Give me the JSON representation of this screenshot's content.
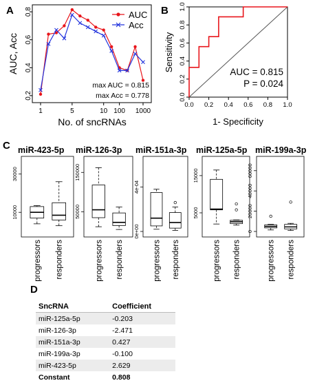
{
  "panels": {
    "a": "A",
    "b": "B",
    "c": "C",
    "d": "D"
  },
  "chart_data": [
    {
      "type": "line",
      "panel": "A",
      "xlabel": "No. of sncRNAs",
      "ylabel": "AUC, Acc",
      "x_tick_labels": [
        "1",
        "5",
        "10",
        "100",
        "1000"
      ],
      "y_tick_labels": [
        "0.2",
        "0.4",
        "0.6",
        "0.8"
      ],
      "ylim": [
        0.15,
        0.85
      ],
      "legend_position": "top-right",
      "series": [
        {
          "name": "AUC",
          "color": "#e8151b",
          "marker": "circle",
          "values": [
            0.21,
            0.64,
            0.65,
            0.7,
            0.815,
            0.77,
            0.74,
            0.69,
            0.67,
            0.55,
            0.4,
            0.38,
            0.55,
            0.31
          ]
        },
        {
          "name": "Acc",
          "color": "#2233dd",
          "marker": "x",
          "values": [
            0.24,
            0.57,
            0.67,
            0.61,
            0.778,
            0.72,
            0.69,
            0.66,
            0.63,
            0.52,
            0.38,
            0.38,
            0.5,
            0.44
          ]
        }
      ],
      "annotations": [
        "max AUC = 0.815",
        "max Acc = 0.778"
      ]
    },
    {
      "type": "line",
      "panel": "B",
      "xlabel": "1- Specificity",
      "ylabel": "Sensitivity",
      "x_tick_labels": [
        "0.0",
        "0.2",
        "0.4",
        "0.6",
        "0.8",
        "1.0"
      ],
      "y_tick_labels": [
        "0.0",
        "0.2",
        "0.4",
        "0.6",
        "0.8",
        "1.0"
      ],
      "xlim": [
        0,
        1
      ],
      "ylim": [
        0,
        1
      ],
      "roc": {
        "color": "#e8151b",
        "points": [
          [
            0,
            0
          ],
          [
            0,
            0.33
          ],
          [
            0.1,
            0.33
          ],
          [
            0.1,
            0.56
          ],
          [
            0.2,
            0.56
          ],
          [
            0.2,
            0.67
          ],
          [
            0.3,
            0.67
          ],
          [
            0.3,
            0.89
          ],
          [
            0.55,
            0.89
          ],
          [
            0.55,
            1.0
          ],
          [
            1.0,
            1.0
          ]
        ]
      },
      "diagonal": true,
      "annotations": [
        "AUC = 0.815",
        "P = 0.024"
      ]
    },
    {
      "type": "box",
      "panel": "C",
      "groups": [
        "progressors",
        "responders"
      ],
      "plots": [
        {
          "title": "miR-423-5p",
          "ylim": [
            0,
            36000
          ],
          "ticks": [
            "10000",
            "30000"
          ],
          "tick_values": [
            10000,
            30000
          ],
          "boxes": [
            {
              "min": 4000,
              "q1": 7000,
              "median": 10000,
              "q3": 13000,
              "max": 13500,
              "outliers": []
            },
            {
              "min": 3000,
              "q1": 6000,
              "median": 8500,
              "q3": 15000,
              "max": 26000,
              "outliers": []
            }
          ]
        },
        {
          "title": "miR-126-3p",
          "ylim": [
            0,
            175000
          ],
          "ticks": [
            "50000",
            "150000"
          ],
          "tick_values": [
            50000,
            150000
          ],
          "boxes": [
            {
              "min": 12000,
              "q1": 35000,
              "median": 55000,
              "q3": 118000,
              "max": 162000,
              "outliers": []
            },
            {
              "min": 5000,
              "q1": 15000,
              "median": 23000,
              "q3": 47000,
              "max": 62000,
              "outliers": []
            }
          ]
        },
        {
          "title": "miR-151a-3p",
          "ylim": [
            0,
            0.00062
          ],
          "ticks": [
            "0e+00",
            "4e-04"
          ],
          "tick_values": [
            0,
            0.0004
          ],
          "boxes": [
            {
              "min": 2e-05,
              "q1": 5e-05,
              "median": 0.00012,
              "q3": 0.00035,
              "max": 0.00038,
              "outliers": []
            },
            {
              "min": 1e-05,
              "q1": 3e-05,
              "median": 8e-05,
              "q3": 0.00017,
              "max": 0.00022,
              "outliers": [
                0.00026
              ]
            }
          ]
        },
        {
          "title": "miR-125a-5p",
          "ylim": [
            0,
            18500
          ],
          "ticks": [
            "5000",
            "15000"
          ],
          "tick_values": [
            5000,
            15000
          ],
          "boxes": [
            {
              "min": 2000,
              "q1": 5800,
              "median": 6000,
              "q3": 14000,
              "max": 16500,
              "outliers": []
            },
            {
              "min": 1700,
              "q1": 2100,
              "median": 2600,
              "q3": 3000,
              "max": 3100,
              "outliers": [
                5800,
                7400
              ]
            }
          ]
        },
        {
          "title": "miR-199a-3p",
          "ylim": [
            0,
            68000
          ],
          "ticks": [
            "0",
            "20000",
            "40000",
            "60000"
          ],
          "tick_values": [
            0,
            20000,
            40000,
            60000
          ],
          "boxes": [
            {
              "min": 1500,
              "q1": 3500,
              "median": 5000,
              "q3": 6500,
              "max": 7000,
              "outliers": [
                15000
              ]
            },
            {
              "min": 1000,
              "q1": 2500,
              "median": 4500,
              "q3": 7000,
              "max": 8000,
              "outliers": [
                29000
              ]
            }
          ]
        }
      ]
    },
    {
      "type": "table",
      "panel": "D",
      "columns": [
        "SncRNA",
        "Coefficient"
      ],
      "rows": [
        [
          "miR-125a-5p",
          "-0.203"
        ],
        [
          "miR-126-3p",
          "-2.471"
        ],
        [
          "miR-151a-3p",
          "0.427"
        ],
        [
          "miR-199a-3p",
          "-0.100"
        ],
        [
          "miR-423-5p",
          "2.629"
        ],
        [
          "Constant",
          "0.808"
        ]
      ]
    }
  ]
}
